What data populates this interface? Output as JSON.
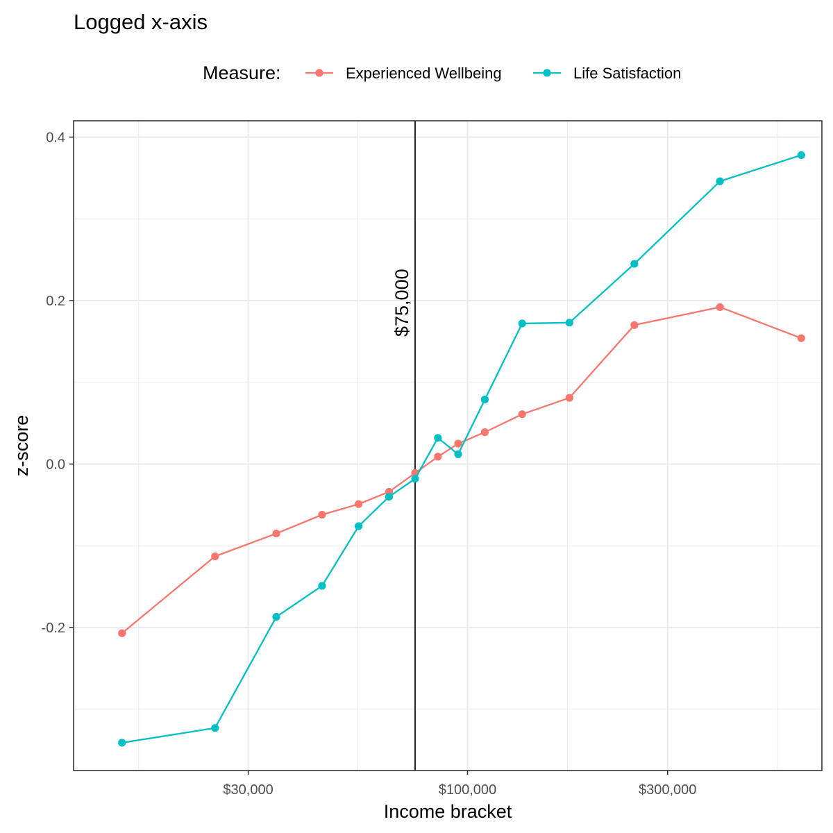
{
  "chart_data": {
    "type": "line",
    "title": "Logged x-axis",
    "xlabel": "Income bracket",
    "ylabel": "z-score",
    "x_scale": "log",
    "xlim": [
      11500,
      700000
    ],
    "ylim": [
      -0.375,
      0.42
    ],
    "x_ticks": [
      30000,
      100000,
      300000
    ],
    "x_tick_labels": [
      "$30,000",
      "$100,000",
      "$300,000"
    ],
    "y_ticks": [
      -0.2,
      0.0,
      0.2,
      0.4
    ],
    "y_tick_labels": [
      "-0.2",
      "0.0",
      "0.2",
      "0.4"
    ],
    "grid": true,
    "legend": {
      "title": "Measure:",
      "position": "top"
    },
    "reference_line": {
      "x": 75000,
      "label": "$75,000"
    },
    "series": [
      {
        "name": "Experienced Wellbeing",
        "color": "#F8766D",
        "x": [
          15000,
          25000,
          35000,
          45000,
          55000,
          65000,
          75000,
          85000,
          95000,
          110000,
          135000,
          175000,
          250000,
          400000,
          625000
        ],
        "y": [
          -0.207,
          -0.113,
          -0.085,
          -0.062,
          -0.049,
          -0.034,
          -0.011,
          0.009,
          0.025,
          0.039,
          0.061,
          0.081,
          0.17,
          0.192,
          0.154
        ]
      },
      {
        "name": "Life Satisfaction",
        "color": "#00BFC4",
        "x": [
          15000,
          25000,
          35000,
          45000,
          55000,
          65000,
          75000,
          85000,
          95000,
          110000,
          135000,
          175000,
          250000,
          400000,
          625000
        ],
        "y": [
          -0.341,
          -0.323,
          -0.187,
          -0.149,
          -0.076,
          -0.04,
          -0.018,
          0.032,
          0.012,
          0.079,
          0.172,
          0.173,
          0.245,
          0.346,
          0.378
        ]
      }
    ]
  }
}
